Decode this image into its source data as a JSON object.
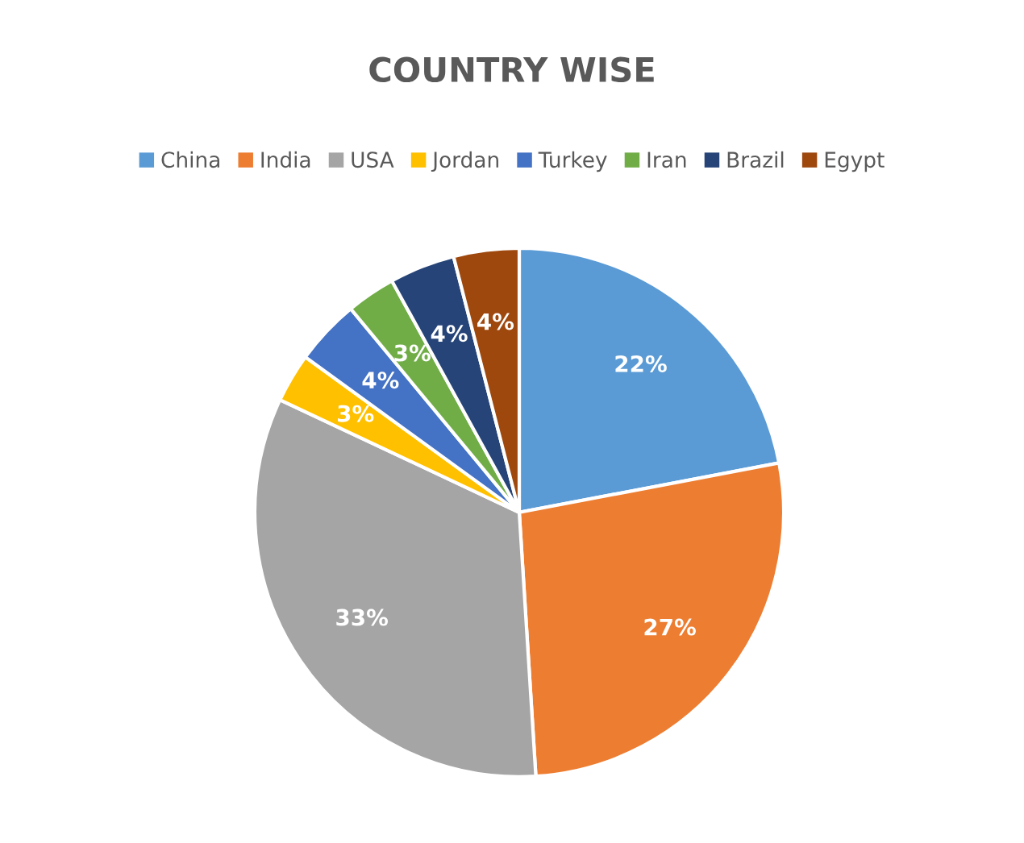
{
  "chart_data": {
    "type": "pie",
    "title": "COUNTRY WISE",
    "categories": [
      "China",
      "India",
      "USA",
      "Jordan",
      "Turkey",
      "Iran",
      "Brazil",
      "Egypt"
    ],
    "values": [
      22,
      27,
      33,
      3,
      4,
      3,
      4,
      4
    ],
    "value_labels": [
      "22%",
      "27%",
      "33%",
      "3%",
      "4%",
      "3%",
      "4%",
      "4%"
    ],
    "colors": [
      "#5b9bd5",
      "#ed7d31",
      "#a5a5a5",
      "#ffc000",
      "#4472c4",
      "#70ad47",
      "#264478",
      "#9e480e"
    ],
    "legend": "top"
  }
}
